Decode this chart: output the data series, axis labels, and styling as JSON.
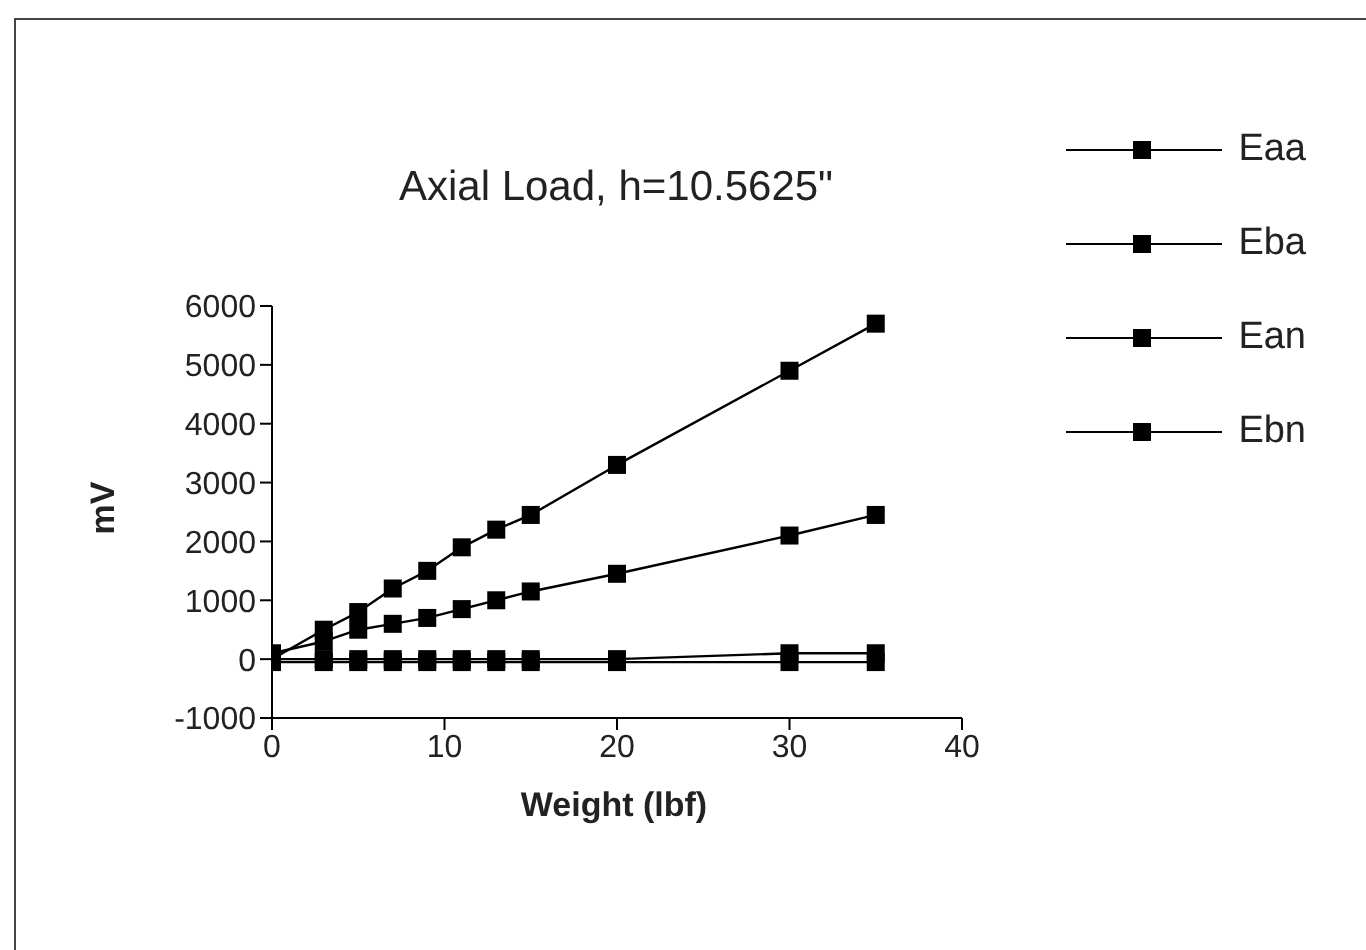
{
  "chart_data": {
    "type": "line",
    "title": "Axial Load, h=10.5625\"",
    "xlabel": "Weight (lbf)",
    "ylabel": "mV",
    "x": [
      0,
      3,
      5,
      7,
      9,
      11,
      13,
      15,
      20,
      30,
      35
    ],
    "series": [
      {
        "name": "Eaa",
        "color": "#000000",
        "values": [
          0,
          500,
          800,
          1200,
          1500,
          1900,
          2200,
          2450,
          3300,
          4900,
          5700
        ]
      },
      {
        "name": "Eba",
        "color": "#000000",
        "values": [
          100,
          300,
          500,
          600,
          700,
          850,
          1000,
          1150,
          1450,
          2100,
          2450
        ]
      },
      {
        "name": "Ean",
        "color": "#000000",
        "values": [
          0,
          0,
          0,
          0,
          0,
          0,
          0,
          0,
          0,
          100,
          100
        ]
      },
      {
        "name": "Ebn",
        "color": "#000000",
        "values": [
          -50,
          -50,
          -50,
          -50,
          -50,
          -50,
          -50,
          -50,
          -50,
          -50,
          -50
        ]
      }
    ],
    "xlim": [
      0,
      40
    ],
    "xticks": [
      0,
      10,
      20,
      30,
      40
    ],
    "ylim": [
      -1000,
      6000
    ],
    "yticks": [
      -1000,
      0,
      1000,
      2000,
      3000,
      4000,
      5000,
      6000
    ],
    "grid": false,
    "legend": "top right",
    "marker": "square",
    "line_style": "solid"
  }
}
